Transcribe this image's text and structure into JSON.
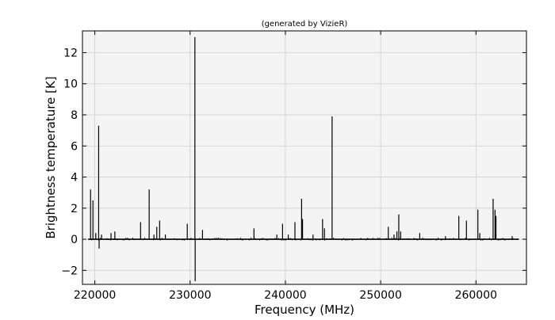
{
  "chart_data": {
    "type": "line",
    "title": "(generated by VizieR)",
    "xlabel": "Frequency (MHz)",
    "ylabel": "Brightness temperature [K]",
    "xlim": [
      218700,
      265300
    ],
    "ylim": [
      -2.9,
      13.4
    ],
    "xticks": [
      220000,
      230000,
      240000,
      250000,
      260000
    ],
    "xtick_labels": [
      "220000",
      "230000",
      "240000",
      "250000",
      "260000"
    ],
    "yticks": [
      -2,
      0,
      2,
      4,
      6,
      8,
      10,
      12
    ],
    "ytick_labels": [
      "−2",
      "0",
      "2",
      "4",
      "6",
      "8",
      "10",
      "12"
    ],
    "grid": true,
    "colors": {
      "plot_bg": "#f4f4f4",
      "grid": "#cfcfcf",
      "line": "#000000"
    },
    "spectral_lines": [
      {
        "x": 219550,
        "y": 3.2
      },
      {
        "x": 219800,
        "y": 2.5
      },
      {
        "x": 220100,
        "y": 0.4
      },
      {
        "x": 220400,
        "y": 7.3
      },
      {
        "x": 220450,
        "y": -0.6
      },
      {
        "x": 220700,
        "y": 0.3
      },
      {
        "x": 221700,
        "y": 0.4
      },
      {
        "x": 222100,
        "y": 0.5
      },
      {
        "x": 224800,
        "y": 1.1
      },
      {
        "x": 225700,
        "y": 3.2
      },
      {
        "x": 226200,
        "y": 0.3
      },
      {
        "x": 226500,
        "y": 0.8
      },
      {
        "x": 226800,
        "y": 1.2
      },
      {
        "x": 227400,
        "y": 0.3
      },
      {
        "x": 229700,
        "y": 1.0
      },
      {
        "x": 230500,
        "y": 13.0
      },
      {
        "x": 230530,
        "y": -2.7
      },
      {
        "x": 231300,
        "y": 0.6
      },
      {
        "x": 236700,
        "y": 0.7
      },
      {
        "x": 239100,
        "y": 0.3
      },
      {
        "x": 239700,
        "y": 1.0
      },
      {
        "x": 240300,
        "y": 0.3
      },
      {
        "x": 241000,
        "y": 1.1
      },
      {
        "x": 241700,
        "y": 2.6
      },
      {
        "x": 241800,
        "y": 1.3
      },
      {
        "x": 242900,
        "y": 0.3
      },
      {
        "x": 243900,
        "y": 1.3
      },
      {
        "x": 244100,
        "y": 0.7
      },
      {
        "x": 244900,
        "y": 7.9
      },
      {
        "x": 250800,
        "y": 0.8
      },
      {
        "x": 251400,
        "y": 0.3
      },
      {
        "x": 251700,
        "y": 0.5
      },
      {
        "x": 251900,
        "y": 1.6
      },
      {
        "x": 252100,
        "y": 0.5
      },
      {
        "x": 254100,
        "y": 0.4
      },
      {
        "x": 256800,
        "y": 0.2
      },
      {
        "x": 258200,
        "y": 1.5
      },
      {
        "x": 259000,
        "y": 1.2
      },
      {
        "x": 260200,
        "y": 1.9
      },
      {
        "x": 260400,
        "y": 0.4
      },
      {
        "x": 261800,
        "y": 2.6
      },
      {
        "x": 262000,
        "y": 1.9
      },
      {
        "x": 262100,
        "y": 1.5
      },
      {
        "x": 263800,
        "y": 0.2
      }
    ]
  }
}
